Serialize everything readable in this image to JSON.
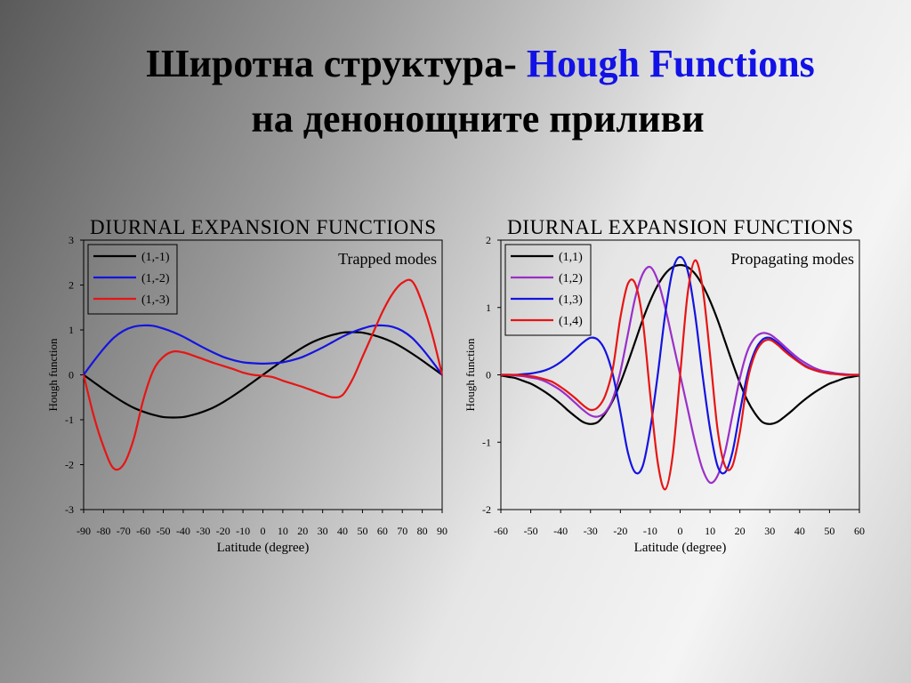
{
  "header": {
    "title_part1": "Широтна структура-",
    "title_part2": "Hough Functions",
    "title_line2": "на денонощните приливи"
  },
  "chart_data": [
    {
      "type": "line",
      "title": "DIURNAL  EXPANSION  FUNCTIONS",
      "annotation": "Trapped modes",
      "xlabel": "Latitude (degree)",
      "ylabel": "Hough function",
      "x": [
        -90,
        -85,
        -80,
        -75,
        -70,
        -65,
        -60,
        -55,
        -50,
        -45,
        -40,
        -35,
        -30,
        -25,
        -20,
        -15,
        -10,
        -5,
        0,
        5,
        10,
        15,
        20,
        25,
        30,
        35,
        40,
        45,
        50,
        55,
        60,
        65,
        70,
        75,
        80,
        85,
        90
      ],
      "series": [
        {
          "name": "(1,-1)",
          "color": "#000000",
          "values": [
            0,
            -0.16,
            -0.32,
            -0.47,
            -0.61,
            -0.73,
            -0.82,
            -0.89,
            -0.94,
            -0.95,
            -0.94,
            -0.89,
            -0.82,
            -0.73,
            -0.61,
            -0.47,
            -0.32,
            -0.16,
            0,
            0.16,
            0.32,
            0.47,
            0.61,
            0.73,
            0.82,
            0.89,
            0.94,
            0.95,
            0.94,
            0.89,
            0.82,
            0.73,
            0.61,
            0.47,
            0.32,
            0.16,
            0
          ]
        },
        {
          "name": "(1,-2)",
          "color": "#1414e0",
          "values": [
            0,
            0.3,
            0.58,
            0.82,
            0.98,
            1.07,
            1.1,
            1.09,
            1.03,
            0.95,
            0.85,
            0.73,
            0.61,
            0.5,
            0.4,
            0.33,
            0.28,
            0.26,
            0.25,
            0.26,
            0.28,
            0.33,
            0.4,
            0.5,
            0.61,
            0.73,
            0.85,
            0.95,
            1.03,
            1.09,
            1.1,
            1.07,
            0.98,
            0.82,
            0.58,
            0.3,
            0
          ]
        },
        {
          "name": "(1,-3)",
          "color": "#e81414",
          "values": [
            0,
            -0.9,
            -1.6,
            -2.08,
            -2.0,
            -1.45,
            -0.55,
            0.1,
            0.4,
            0.52,
            0.5,
            0.43,
            0.35,
            0.27,
            0.2,
            0.13,
            0.05,
            0,
            -0.02,
            -0.05,
            -0.13,
            -0.2,
            -0.27,
            -0.35,
            -0.43,
            -0.5,
            -0.45,
            -0.1,
            0.4,
            0.9,
            1.4,
            1.8,
            2.05,
            2.08,
            1.6,
            0.9,
            0
          ]
        }
      ],
      "xlim": [
        -90,
        90
      ],
      "xticks": [
        -90,
        -80,
        -70,
        -60,
        -50,
        -40,
        -30,
        -20,
        -10,
        0,
        10,
        20,
        30,
        40,
        50,
        60,
        70,
        80,
        90
      ],
      "ylim": [
        -3,
        3
      ],
      "yticks": [
        -3,
        -2,
        -1,
        0,
        1,
        2,
        3
      ],
      "legend": "upper left"
    },
    {
      "type": "line",
      "title": "DIURNAL  EXPANSION  FUNCTIONS",
      "annotation": "Propagating modes",
      "xlabel": "Latitude (degree)",
      "ylabel": "Hough function",
      "x": [
        -60,
        -57.5,
        -55,
        -52.5,
        -50,
        -47.5,
        -45,
        -42.5,
        -40,
        -37.5,
        -35,
        -32.5,
        -30,
        -27.5,
        -25,
        -22.5,
        -20,
        -17.5,
        -15,
        -12.5,
        -10,
        -7.5,
        -5,
        -2.5,
        0,
        2.5,
        5,
        7.5,
        10,
        12.5,
        15,
        17.5,
        20,
        22.5,
        25,
        27.5,
        30,
        32.5,
        35,
        37.5,
        40,
        42.5,
        45,
        47.5,
        50,
        52.5,
        55,
        57.5,
        60
      ],
      "series": [
        {
          "name": "(1,1)",
          "color": "#000000",
          "values": [
            -0.01,
            -0.03,
            -0.05,
            -0.09,
            -0.13,
            -0.19,
            -0.26,
            -0.34,
            -0.43,
            -0.53,
            -0.62,
            -0.7,
            -0.73,
            -0.7,
            -0.57,
            -0.38,
            -0.12,
            0.18,
            0.5,
            0.82,
            1.1,
            1.33,
            1.5,
            1.6,
            1.63,
            1.6,
            1.5,
            1.33,
            1.1,
            0.82,
            0.5,
            0.18,
            -0.12,
            -0.38,
            -0.57,
            -0.7,
            -0.73,
            -0.7,
            -0.62,
            -0.53,
            -0.43,
            -0.34,
            -0.26,
            -0.19,
            -0.13,
            -0.09,
            -0.05,
            -0.03,
            -0.01
          ]
        },
        {
          "name": "(1,2)",
          "color": "#9b2fc8",
          "values": [
            0,
            0,
            -0.01,
            -0.02,
            -0.04,
            -0.06,
            -0.1,
            -0.16,
            -0.23,
            -0.32,
            -0.42,
            -0.52,
            -0.6,
            -0.62,
            -0.55,
            -0.35,
            0.05,
            0.6,
            1.15,
            1.5,
            1.6,
            1.4,
            1.0,
            0.5,
            0,
            -0.5,
            -1.0,
            -1.4,
            -1.6,
            -1.5,
            -1.15,
            -0.6,
            -0.05,
            0.35,
            0.55,
            0.62,
            0.6,
            0.52,
            0.42,
            0.32,
            0.23,
            0.16,
            0.1,
            0.06,
            0.04,
            0.02,
            0.01,
            0,
            0
          ]
        },
        {
          "name": "(1,3)",
          "color": "#1414e0",
          "values": [
            0,
            0,
            0,
            0.01,
            0.02,
            0.04,
            0.07,
            0.12,
            0.19,
            0.28,
            0.38,
            0.48,
            0.55,
            0.52,
            0.35,
            0,
            -0.55,
            -1.15,
            -1.45,
            -1.35,
            -0.8,
            0,
            0.9,
            1.55,
            1.75,
            1.55,
            0.9,
            0,
            -0.8,
            -1.35,
            -1.45,
            -1.15,
            -0.55,
            0,
            0.35,
            0.52,
            0.55,
            0.48,
            0.38,
            0.28,
            0.19,
            0.12,
            0.07,
            0.04,
            0.02,
            0.01,
            0,
            0,
            0
          ]
        },
        {
          "name": "(1,4)",
          "color": "#e81414",
          "values": [
            0,
            0,
            0,
            -0.01,
            -0.02,
            -0.04,
            -0.07,
            -0.11,
            -0.18,
            -0.26,
            -0.35,
            -0.45,
            -0.52,
            -0.48,
            -0.3,
            0.1,
            0.85,
            1.35,
            1.35,
            0.8,
            -0.3,
            -1.3,
            -1.7,
            -1.2,
            0,
            1.2,
            1.7,
            1.3,
            0.3,
            -0.8,
            -1.35,
            -1.35,
            -0.85,
            -0.1,
            0.3,
            0.48,
            0.52,
            0.45,
            0.35,
            0.26,
            0.18,
            0.11,
            0.07,
            0.04,
            0.02,
            0.01,
            0,
            0,
            0
          ]
        }
      ],
      "xlim": [
        -60,
        60
      ],
      "xticks": [
        -60,
        -50,
        -40,
        -30,
        -20,
        -10,
        0,
        10,
        20,
        30,
        40,
        50,
        60
      ],
      "ylim": [
        -2,
        2
      ],
      "yticks": [
        -2,
        -1,
        0,
        1,
        2
      ],
      "legend": "upper left"
    }
  ]
}
